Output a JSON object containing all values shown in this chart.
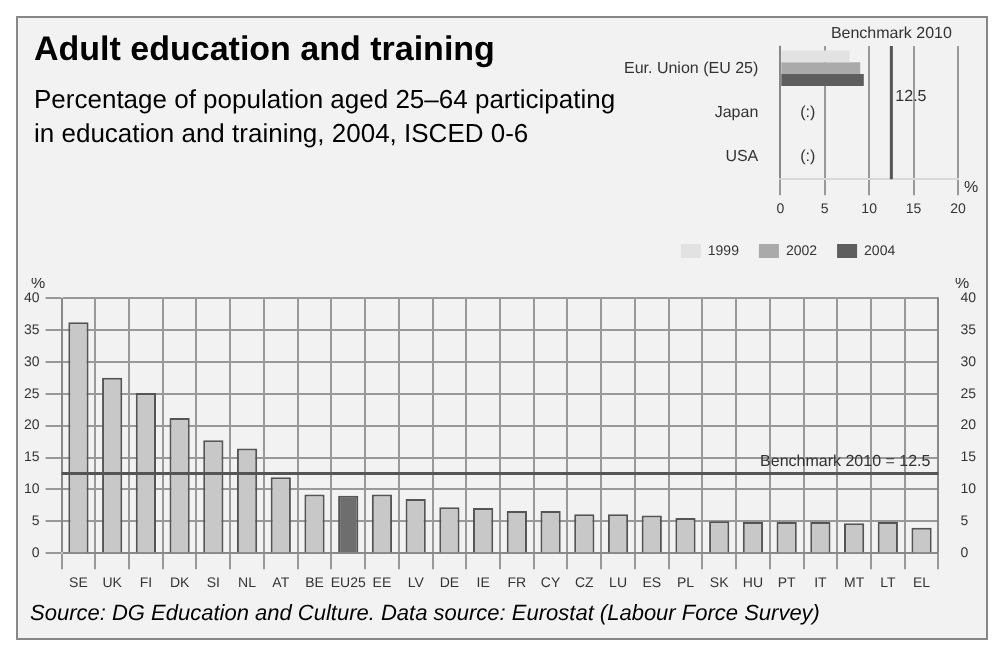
{
  "chart_data": [
    {
      "type": "bar",
      "title": "Adult education and training",
      "subtitle": "Percentage of population aged 25–64 participating in education and training, 2004, ISCED 0-6",
      "categories": [
        "SE",
        "UK",
        "FI",
        "DK",
        "SI",
        "NL",
        "AT",
        "BE",
        "EU25",
        "EE",
        "LV",
        "DE",
        "IE",
        "FR",
        "CY",
        "CZ",
        "LU",
        "ES",
        "PL",
        "SK",
        "HU",
        "PT",
        "IT",
        "MT",
        "LT",
        "EL"
      ],
      "values": [
        36.2,
        27.5,
        25.1,
        21.2,
        17.7,
        16.4,
        11.9,
        9.2,
        9.0,
        9.2,
        8.5,
        7.2,
        7.1,
        6.6,
        6.6,
        6.1,
        6.1,
        5.9,
        5.5,
        5.0,
        4.9,
        4.9,
        4.9,
        4.7,
        4.9,
        4.0
      ],
      "colors": [
        "#c8c8c8",
        "#c8c8c8",
        "#c8c8c8",
        "#c8c8c8",
        "#c8c8c8",
        "#c8c8c8",
        "#c8c8c8",
        "#c8c8c8",
        "#6e6e6e",
        "#c8c8c8",
        "#c8c8c8",
        "#c8c8c8",
        "#c8c8c8",
        "#c8c8c8",
        "#c8c8c8",
        "#c8c8c8",
        "#c8c8c8",
        "#c8c8c8",
        "#c8c8c8",
        "#c8c8c8",
        "#c8c8c8",
        "#c8c8c8",
        "#c8c8c8",
        "#c8c8c8",
        "#c8c8c8",
        "#c8c8c8"
      ],
      "ylim": [
        0,
        40
      ],
      "yticks": [
        0,
        5,
        10,
        15,
        20,
        25,
        30,
        35,
        40
      ],
      "y2lim": [
        0,
        40
      ],
      "y2ticks": [
        0,
        5,
        10,
        15,
        20,
        25,
        30,
        35,
        40
      ],
      "ylabel": "%",
      "y2label": "%",
      "grid": true,
      "legend": false,
      "ref_lines": [
        {
          "axis": "y",
          "value": 12.5,
          "label": "Benchmark 2010 = 12.5",
          "color": "#555555"
        }
      ],
      "annotations": [
        "Source: DG Education and Culture. Data source: Eurostat (Labour Force Survey)"
      ]
    },
    {
      "type": "bar",
      "orientation": "horizontal",
      "categories": [
        "Eur. Union (EU 25)",
        "Japan",
        "USA"
      ],
      "series": [
        {
          "name": "1999",
          "color": "#e2e2e2",
          "values": [
            7.8,
            null,
            null
          ]
        },
        {
          "name": "2002",
          "color": "#aaaaaa",
          "values": [
            9.0,
            null,
            null
          ]
        },
        {
          "name": "2004",
          "color": "#5e5e5e",
          "values": [
            9.4,
            null,
            null
          ]
        }
      ],
      "xlim": [
        0,
        20
      ],
      "xticks": [
        0,
        5,
        10,
        15,
        20
      ],
      "xlabel": "%",
      "grid": true,
      "legend": "bottom",
      "ref_lines": [
        {
          "axis": "x",
          "value": 12.5,
          "label": "Benchmark 2010",
          "color": "#555555"
        }
      ],
      "annotations": [
        {
          "text": "12.5",
          "x": 12.5
        },
        "(:)",
        "(:)"
      ]
    }
  ]
}
